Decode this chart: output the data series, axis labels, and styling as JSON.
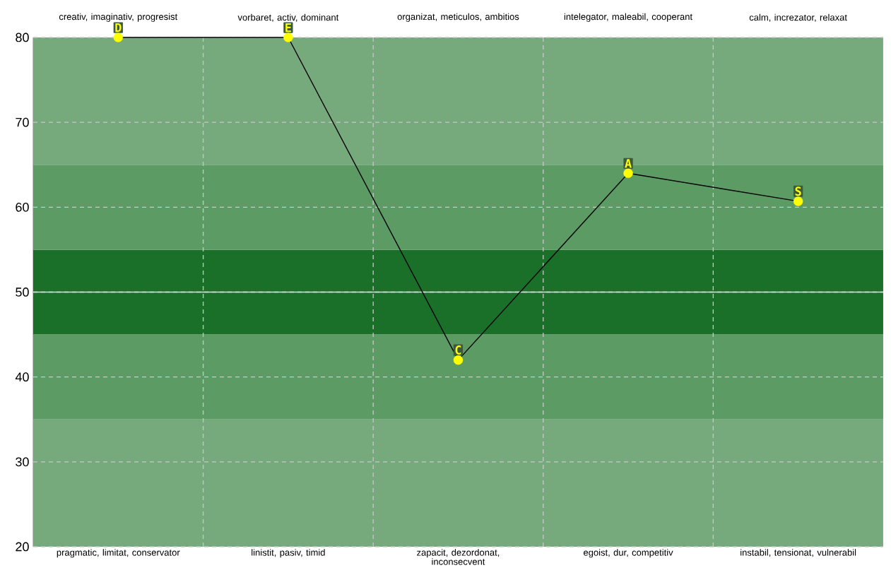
{
  "chart_data": {
    "type": "line",
    "categories": [
      "pragmatic, limitat, conservator",
      "linistit, pasiv, timid",
      "zapacit, dezordonat, inconsecvent",
      "egoist, dur, competitiv",
      "instabil, tensionat, vulnerabil"
    ],
    "annotations": [
      "creativ, imaginativ, progresist",
      "vorbaret, activ, dominant",
      "organizat, meticulos, ambitios",
      "intelegator, maleabil, cooperant",
      "calm, increzator, relaxat"
    ],
    "series": [
      {
        "color": "#000000",
        "colors": [
          "#ffff00",
          "#ffff00",
          "#ffff00",
          "#ffff00",
          "#ffff00"
        ],
        "values": [
          80,
          80,
          42,
          64,
          60.7
        ],
        "value_labels": [
          "D",
          "E",
          "C",
          "A",
          "S"
        ]
      }
    ],
    "ylim": [
      20,
      80
    ],
    "yticks": [
      20,
      30,
      40,
      50,
      60,
      70,
      80
    ],
    "bands": [
      {
        "axis": "y",
        "from": 20,
        "to": 35,
        "color": "#76a97c"
      },
      {
        "axis": "y",
        "from": 35,
        "to": 45,
        "color": "#5c9c64"
      },
      {
        "axis": "y",
        "from": 45,
        "to": 55,
        "color": "#1a7029"
      },
      {
        "axis": "y",
        "from": 55,
        "to": 65,
        "color": "#5c9c64"
      },
      {
        "axis": "y",
        "from": 65,
        "to": 80,
        "color": "#76a97c"
      }
    ],
    "ref_lines": [
      {
        "axis": "y",
        "value": 50,
        "color": "#dddddd",
        "line_style": "solid"
      }
    ],
    "grid": true,
    "marker": "circle",
    "line_style": "solid"
  }
}
